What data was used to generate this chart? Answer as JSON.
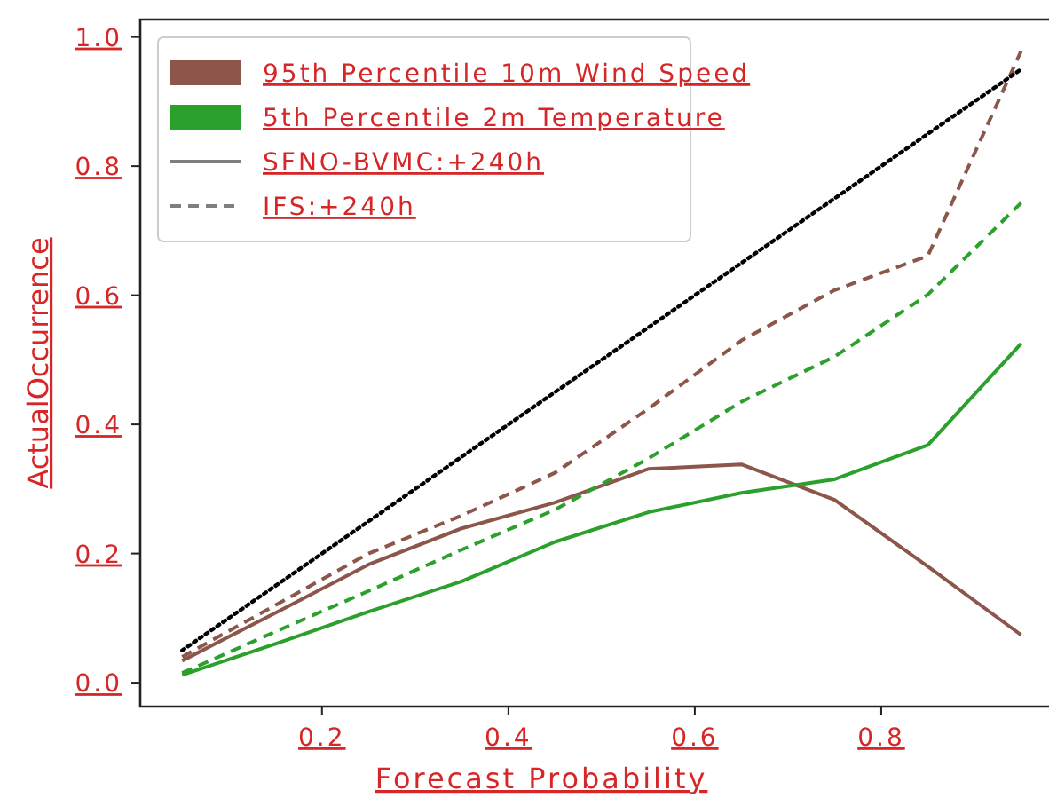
{
  "chart_data": {
    "type": "line",
    "xlabel": "Forecast Probability",
    "ylabel": "ActualOccurrence",
    "x": [
      0.05,
      0.15,
      0.25,
      0.35,
      0.45,
      0.55,
      0.65,
      0.75,
      0.85,
      0.95
    ],
    "xlim": [
      0.005,
      0.98
    ],
    "ylim": [
      -0.037,
      1.027
    ],
    "xticks": [
      0.2,
      0.4,
      0.6,
      0.8
    ],
    "yticks": [
      {
        "value": 0,
        "label": "0.0"
      },
      0.2,
      0.4,
      0.6,
      0.8,
      {
        "value": 1,
        "label": "1.0"
      }
    ],
    "grid": false,
    "legend": "top left",
    "series": [
      {
        "name": "95th Percentile 10m Wind Speed",
        "color": "#8c564b",
        "line_style": "solid",
        "values": [
          0.034,
          0.108,
          0.183,
          0.239,
          0.279,
          0.331,
          0.338,
          0.283,
          0.18,
          0.074
        ]
      },
      {
        "name": "5th Percentile 2m Temperature",
        "color": "#2ca02c",
        "line_style": "solid",
        "values": [
          0.012,
          0.06,
          0.11,
          0.157,
          0.218,
          0.264,
          0.294,
          0.315,
          0.368,
          0.525
        ]
      },
      {
        "color": "#8c564b",
        "line_style": "dashed",
        "values": [
          0.04,
          0.12,
          0.2,
          0.259,
          0.325,
          0.424,
          0.53,
          0.608,
          0.661,
          0.978
        ]
      },
      {
        "color": "#2ca02c",
        "line_style": "dashed",
        "values": [
          0.015,
          0.079,
          0.142,
          0.206,
          0.268,
          0.347,
          0.435,
          0.505,
          0.601,
          0.743
        ]
      },
      {
        "name": "SFNO-BVMC:+240h",
        "color": "#7f7f7f",
        "line_style": "solid",
        "values": [
          null,
          null,
          null,
          null,
          null,
          null,
          null,
          null,
          null,
          null
        ]
      },
      {
        "name": "IFS:+240h",
        "color": "#7f7f7f",
        "line_style": "dashed",
        "values": [
          null,
          null,
          null,
          null,
          null,
          null,
          null,
          null,
          null,
          null
        ]
      },
      {
        "color": "#000000",
        "line_style": "dotted",
        "x": [
          0.05,
          0.95
        ],
        "values": [
          0.05,
          0.95
        ]
      }
    ]
  }
}
